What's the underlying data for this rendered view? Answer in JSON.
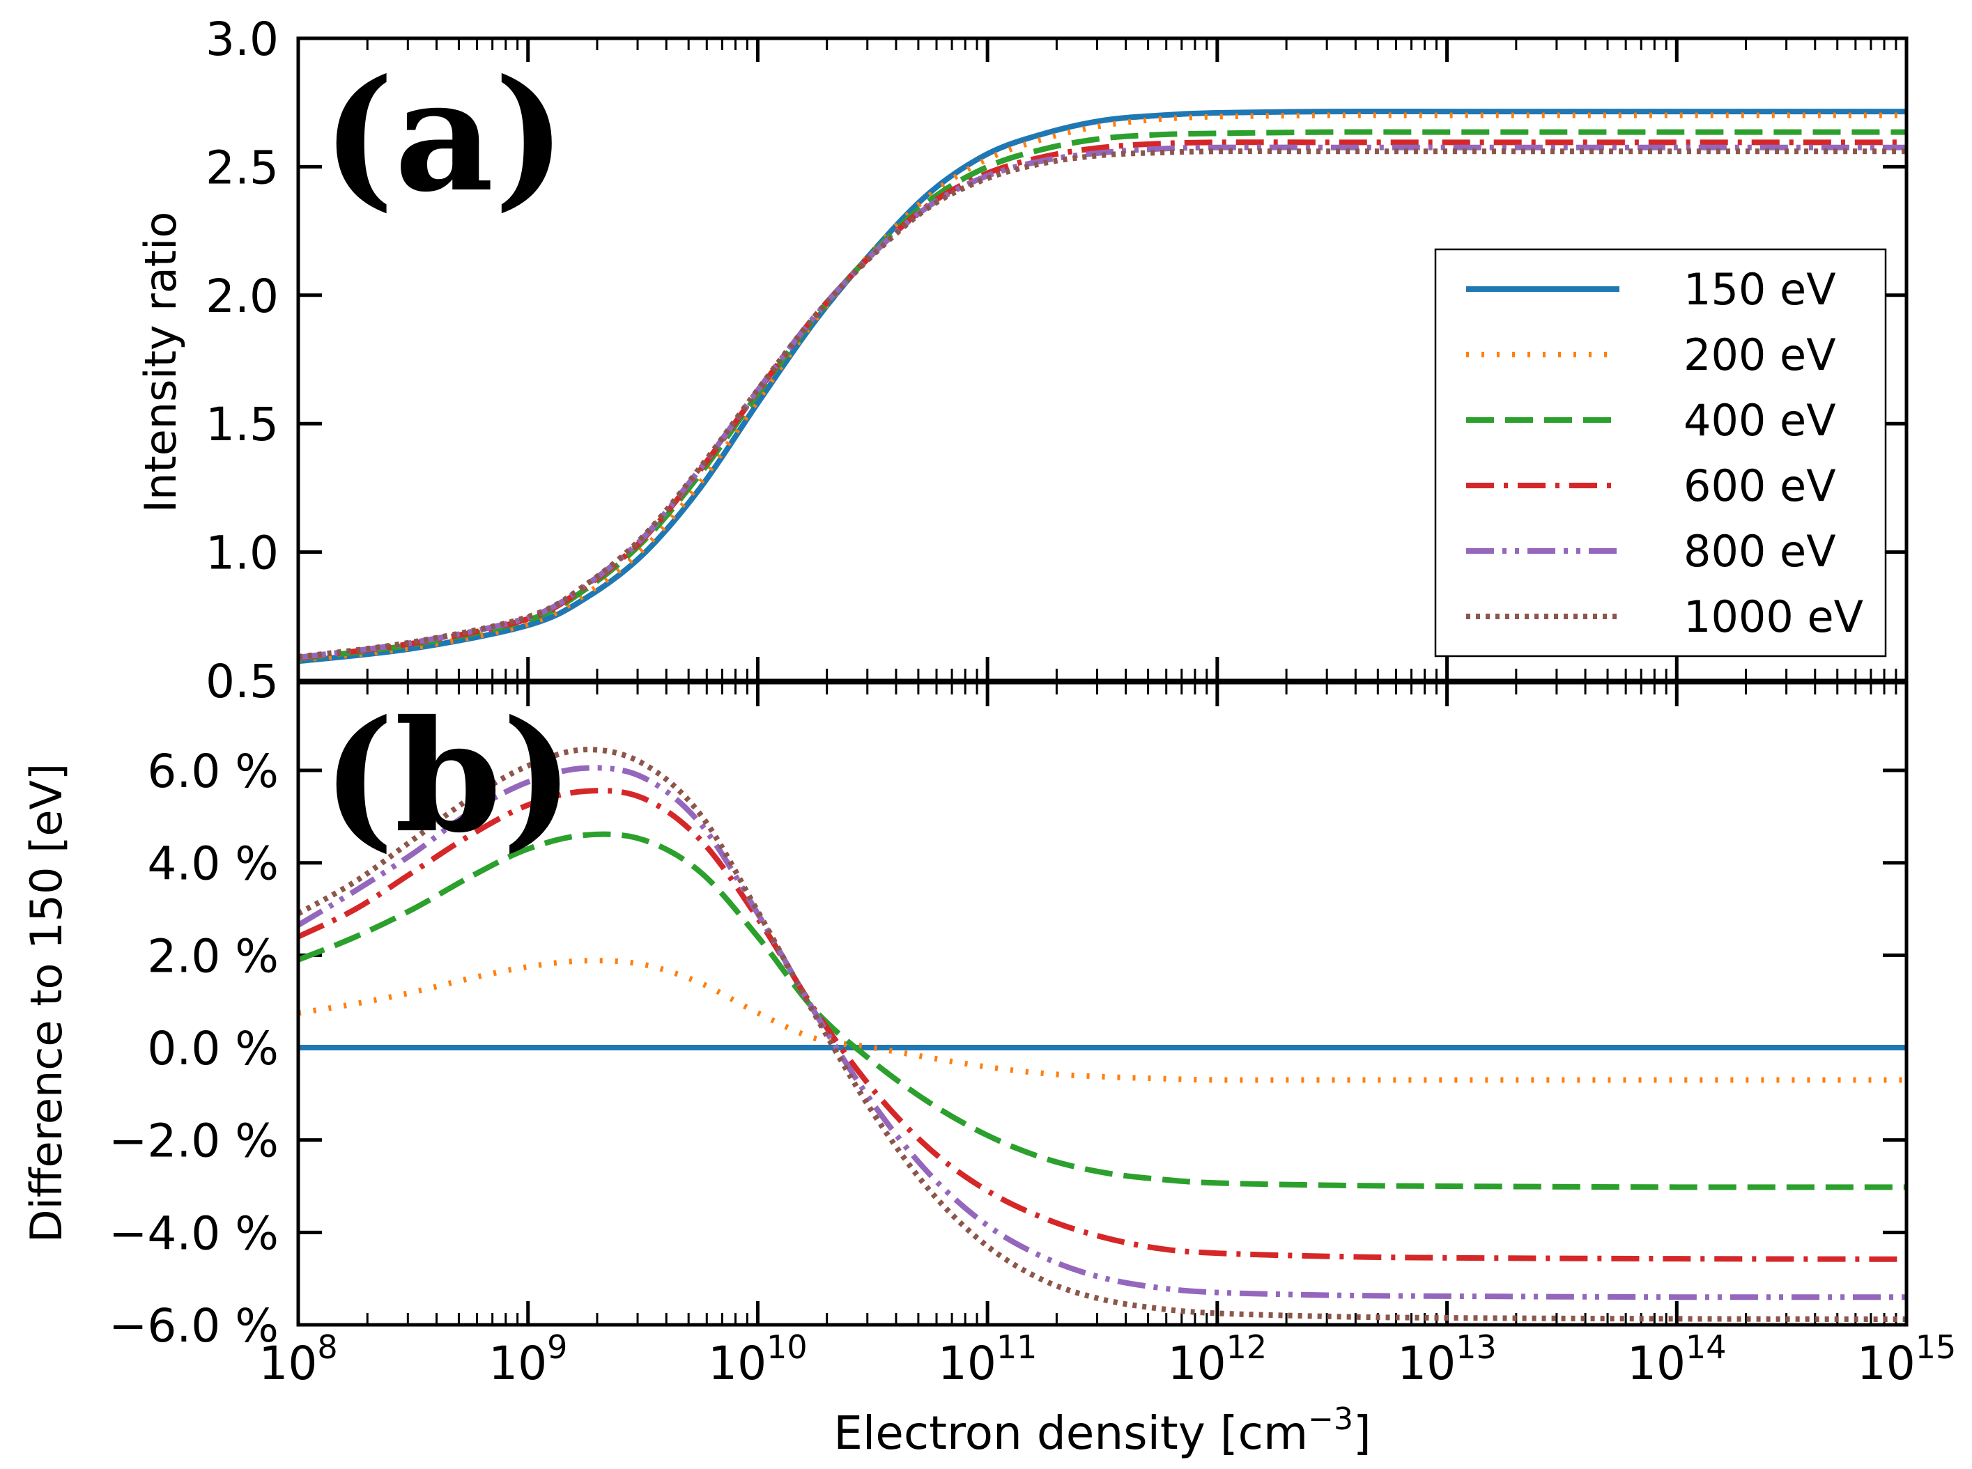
{
  "chart_data": [
    {
      "type": "line",
      "panel_label": "(a)",
      "xscale": "log",
      "xlim": [
        100000000.0,
        1000000000000000.0
      ],
      "ylim": [
        0.5,
        3.0
      ],
      "ylabel": "Intensity ratio",
      "yticks": [
        0.5,
        1.0,
        1.5,
        2.0,
        2.5,
        3.0
      ],
      "ytick_labels": [
        "0.5",
        "1.0",
        "1.5",
        "2.0",
        "2.5",
        "3.0"
      ],
      "legend_location": "center-right",
      "x_log10": [
        8,
        8.5,
        9,
        9.25,
        9.5,
        9.75,
        10,
        10.25,
        10.5,
        10.75,
        11,
        11.25,
        11.5,
        11.75,
        12,
        12.5,
        13,
        14,
        15
      ],
      "series": [
        {
          "name": "150 eV",
          "values": [
            0.575,
            0.625,
            0.715,
            0.82,
            0.99,
            1.25,
            1.58,
            1.9,
            2.17,
            2.4,
            2.55,
            2.63,
            2.68,
            2.7,
            2.71,
            2.715,
            2.715,
            2.715,
            2.715
          ]
        },
        {
          "name": "200 eV",
          "values": [
            0.58,
            0.628,
            0.72,
            0.835,
            1.01,
            1.27,
            1.59,
            1.905,
            2.17,
            2.39,
            2.53,
            2.61,
            2.66,
            2.685,
            2.695,
            2.7,
            2.7,
            2.7,
            2.7
          ]
        },
        {
          "name": "400 eV",
          "values": [
            0.585,
            0.64,
            0.735,
            0.855,
            1.04,
            1.305,
            1.615,
            1.915,
            2.165,
            2.37,
            2.5,
            2.57,
            2.61,
            2.625,
            2.63,
            2.635,
            2.635,
            2.635,
            2.635
          ]
        },
        {
          "name": "600 eV",
          "values": [
            0.588,
            0.645,
            0.74,
            0.865,
            1.05,
            1.32,
            1.625,
            1.92,
            2.16,
            2.355,
            2.475,
            2.54,
            2.575,
            2.59,
            2.595,
            2.595,
            2.595,
            2.595,
            2.595
          ]
        },
        {
          "name": "800 eV",
          "values": [
            0.59,
            0.648,
            0.745,
            0.87,
            1.055,
            1.325,
            1.63,
            1.92,
            2.16,
            2.35,
            2.465,
            2.525,
            2.555,
            2.57,
            2.575,
            2.575,
            2.575,
            2.575,
            2.575
          ]
        },
        {
          "name": "1000 eV",
          "values": [
            0.592,
            0.65,
            0.748,
            0.872,
            1.06,
            1.33,
            1.632,
            1.92,
            2.155,
            2.345,
            2.455,
            2.515,
            2.545,
            2.555,
            2.56,
            2.56,
            2.56,
            2.56,
            2.56
          ]
        }
      ]
    },
    {
      "type": "line",
      "panel_label": "(b)",
      "xscale": "log",
      "xlim": [
        100000000.0,
        1000000000000000.0
      ],
      "ylim": [
        -6.0,
        7.9
      ],
      "xlabel": "Electron density [cm",
      "xlabel_exponent": "−3",
      "xlabel_close": "]",
      "ylabel": "Difference to  150  [eV]",
      "yticks": [
        -6.0,
        -4.0,
        -2.0,
        0.0,
        2.0,
        4.0,
        6.0
      ],
      "ytick_labels": [
        "−6.0 %",
        "−4.0 %",
        "−2.0 %",
        "0.0 %",
        "2.0 %",
        "4.0 %",
        "6.0 %"
      ],
      "xtick_base": "10",
      "xtick_exponents": [
        "8",
        "9",
        "10",
        "11",
        "12",
        "13",
        "14",
        "15"
      ],
      "x_log10": [
        8,
        8.25,
        8.5,
        8.75,
        9,
        9.25,
        9.5,
        9.75,
        10,
        10.25,
        10.5,
        10.75,
        11,
        11.25,
        11.5,
        11.75,
        12,
        12.5,
        13,
        14,
        15
      ],
      "series": [
        {
          "name": "150 eV",
          "values": [
            0,
            0,
            0,
            0,
            0,
            0,
            0,
            0,
            0,
            0,
            0,
            0,
            0,
            0,
            0,
            0,
            0,
            0,
            0,
            0,
            0
          ]
        },
        {
          "name": "200 eV",
          "values": [
            0.75,
            0.95,
            1.2,
            1.5,
            1.75,
            1.88,
            1.8,
            1.4,
            0.75,
            0.2,
            0.0,
            -0.22,
            -0.42,
            -0.56,
            -0.63,
            -0.67,
            -0.7,
            -0.7,
            -0.7,
            -0.7,
            -0.7
          ]
        },
        {
          "name": "400 eV",
          "values": [
            1.9,
            2.4,
            3.0,
            3.7,
            4.3,
            4.6,
            4.5,
            3.8,
            2.4,
            0.8,
            -0.3,
            -1.2,
            -1.9,
            -2.4,
            -2.7,
            -2.85,
            -2.93,
            -2.98,
            -3.0,
            -3.02,
            -3.02
          ]
        },
        {
          "name": "600 eV",
          "values": [
            2.4,
            3.0,
            3.8,
            4.6,
            5.25,
            5.55,
            5.4,
            4.5,
            2.8,
            0.8,
            -0.9,
            -2.2,
            -3.1,
            -3.7,
            -4.1,
            -4.35,
            -4.45,
            -4.52,
            -4.55,
            -4.57,
            -4.58
          ]
        },
        {
          "name": "800 eV",
          "values": [
            2.65,
            3.4,
            4.2,
            5.1,
            5.75,
            6.05,
            5.85,
            4.85,
            2.9,
            0.75,
            -1.2,
            -2.75,
            -3.85,
            -4.55,
            -4.98,
            -5.2,
            -5.3,
            -5.36,
            -5.38,
            -5.4,
            -5.4
          ]
        },
        {
          "name": "1000 eV",
          "values": [
            2.9,
            3.6,
            4.5,
            5.4,
            6.1,
            6.45,
            6.15,
            5.05,
            2.95,
            0.7,
            -1.4,
            -3.1,
            -4.3,
            -5.05,
            -5.45,
            -5.65,
            -5.75,
            -5.82,
            -5.85,
            -5.87,
            -5.88
          ]
        }
      ]
    }
  ],
  "legend": [
    {
      "label": "150 eV",
      "color": "#1f77b4",
      "style": "solid"
    },
    {
      "label": "200 eV",
      "color": "#ff7f0e",
      "style": "dotted"
    },
    {
      "label": "400 eV",
      "color": "#2ca02c",
      "style": "dashed"
    },
    {
      "label": "600 eV",
      "color": "#d62728",
      "style": "dashdot"
    },
    {
      "label": "800 eV",
      "color": "#9467bd",
      "style": "dashdotdot"
    },
    {
      "label": "1000 eV",
      "color": "#8c564b",
      "style": "dense-dotted"
    }
  ]
}
